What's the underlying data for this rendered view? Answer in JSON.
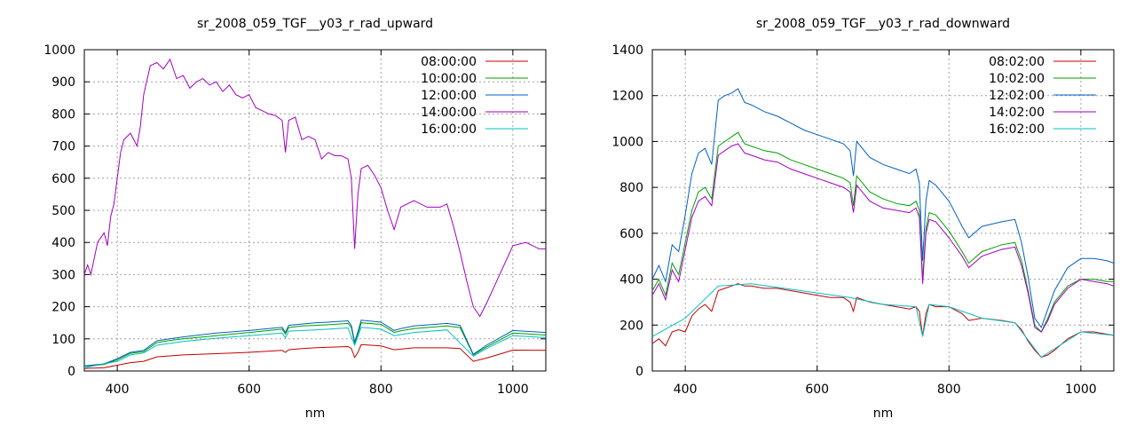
{
  "chart_data": [
    {
      "type": "line",
      "title": "sr_2008_059_TGF__y03_r_rad_upward",
      "xlabel": "nm",
      "ylabel": "",
      "xlim": [
        350,
        1050
      ],
      "ylim": [
        0,
        1000
      ],
      "xticks": [
        400,
        600,
        800,
        1000
      ],
      "yticks": [
        0,
        100,
        200,
        300,
        400,
        500,
        600,
        700,
        800,
        900,
        1000
      ],
      "grid": true,
      "legend_position": "top-right",
      "series": [
        {
          "name": "08:00:00",
          "color": "#c00000",
          "x": [
            350,
            380,
            400,
            420,
            440,
            460,
            480,
            500,
            550,
            600,
            650,
            655,
            660,
            680,
            700,
            720,
            750,
            755,
            760,
            765,
            770,
            800,
            820,
            830,
            850,
            900,
            920,
            940,
            960,
            1000,
            1050
          ],
          "y": [
            8,
            10,
            18,
            26,
            30,
            44,
            47,
            50,
            54,
            58,
            64,
            58,
            66,
            70,
            72,
            74,
            76,
            70,
            42,
            58,
            82,
            78,
            66,
            68,
            72,
            72,
            70,
            30,
            40,
            65,
            64
          ]
        },
        {
          "name": "10:00:00",
          "color": "#00a000",
          "x": [
            350,
            380,
            400,
            420,
            440,
            460,
            480,
            500,
            550,
            600,
            650,
            655,
            660,
            680,
            700,
            720,
            750,
            755,
            760,
            765,
            770,
            800,
            820,
            830,
            850,
            900,
            920,
            940,
            960,
            1000,
            1050
          ],
          "y": [
            15,
            20,
            35,
            55,
            60,
            88,
            95,
            100,
            110,
            120,
            130,
            115,
            135,
            140,
            142,
            144,
            148,
            135,
            85,
            115,
            150,
            145,
            120,
            125,
            132,
            140,
            135,
            50,
            75,
            118,
            112
          ]
        },
        {
          "name": "12:00:00",
          "color": "#0060c0",
          "x": [
            350,
            380,
            400,
            420,
            440,
            460,
            480,
            500,
            550,
            600,
            650,
            655,
            660,
            680,
            700,
            720,
            750,
            755,
            760,
            765,
            770,
            800,
            820,
            830,
            850,
            900,
            920,
            940,
            960,
            1000,
            1050
          ],
          "y": [
            16,
            22,
            38,
            58,
            64,
            94,
            100,
            106,
            118,
            126,
            136,
            120,
            142,
            146,
            150,
            152,
            156,
            142,
            90,
            122,
            158,
            152,
            126,
            132,
            140,
            148,
            142,
            52,
            80,
            126,
            120
          ]
        },
        {
          "name": "14:00:00",
          "color": "#a000c0",
          "x": [
            350,
            355,
            360,
            370,
            380,
            385,
            390,
            395,
            400,
            405,
            410,
            420,
            430,
            435,
            440,
            450,
            460,
            470,
            480,
            490,
            500,
            510,
            520,
            530,
            540,
            550,
            560,
            570,
            580,
            590,
            600,
            610,
            620,
            630,
            640,
            650,
            655,
            660,
            670,
            680,
            690,
            700,
            710,
            720,
            730,
            740,
            750,
            755,
            760,
            765,
            770,
            780,
            790,
            800,
            810,
            820,
            830,
            850,
            870,
            890,
            900,
            910,
            920,
            930,
            940,
            950,
            960,
            980,
            1000,
            1020,
            1030,
            1040,
            1050
          ],
          "y": [
            300,
            330,
            300,
            400,
            430,
            390,
            480,
            520,
            600,
            680,
            720,
            740,
            700,
            760,
            860,
            950,
            960,
            940,
            970,
            910,
            920,
            880,
            900,
            910,
            890,
            900,
            870,
            890,
            860,
            850,
            860,
            820,
            810,
            800,
            795,
            780,
            680,
            780,
            790,
            720,
            730,
            720,
            660,
            680,
            670,
            670,
            660,
            600,
            380,
            550,
            630,
            640,
            610,
            570,
            500,
            440,
            510,
            530,
            510,
            510,
            520,
            450,
            370,
            280,
            200,
            170,
            210,
            300,
            390,
            400,
            390,
            380,
            380
          ]
        },
        {
          "name": "16:00:00",
          "color": "#00c0c0",
          "x": [
            350,
            400,
            420,
            440,
            460,
            500,
            550,
            600,
            650,
            655,
            660,
            700,
            750,
            760,
            770,
            800,
            820,
            850,
            900,
            940,
            960,
            1000,
            1050
          ],
          "y": [
            10,
            30,
            50,
            56,
            80,
            92,
            102,
            110,
            118,
            104,
            124,
            128,
            134,
            80,
            136,
            130,
            110,
            120,
            128,
            46,
            70,
            110,
            104
          ]
        }
      ]
    },
    {
      "type": "line",
      "title": "sr_2008_059_TGF__y03_r_rad_downward",
      "xlabel": "nm",
      "ylabel": "",
      "xlim": [
        350,
        1050
      ],
      "ylim": [
        0,
        1400
      ],
      "xticks": [
        400,
        600,
        800,
        1000
      ],
      "yticks": [
        0,
        200,
        400,
        600,
        800,
        1000,
        1200,
        1400
      ],
      "grid": true,
      "legend_position": "top-right",
      "series": [
        {
          "name": "08:02:00",
          "color": "#c00000",
          "x": [
            350,
            360,
            370,
            380,
            390,
            400,
            410,
            420,
            430,
            440,
            450,
            460,
            470,
            480,
            490,
            500,
            520,
            540,
            560,
            580,
            600,
            620,
            640,
            650,
            655,
            660,
            680,
            700,
            720,
            740,
            750,
            755,
            760,
            765,
            770,
            780,
            800,
            820,
            830,
            850,
            880,
            900,
            910,
            920,
            930,
            940,
            950,
            960,
            980,
            1000,
            1020,
            1040,
            1050
          ],
          "y": [
            120,
            140,
            110,
            170,
            180,
            170,
            240,
            270,
            290,
            260,
            350,
            360,
            370,
            380,
            370,
            370,
            360,
            360,
            350,
            340,
            330,
            320,
            320,
            300,
            260,
            320,
            300,
            290,
            280,
            270,
            280,
            260,
            150,
            250,
            290,
            280,
            280,
            250,
            220,
            230,
            220,
            210,
            180,
            130,
            90,
            60,
            70,
            90,
            140,
            170,
            170,
            160,
            155
          ]
        },
        {
          "name": "10:02:00",
          "color": "#00a000",
          "x": [
            350,
            360,
            370,
            380,
            390,
            400,
            410,
            420,
            430,
            440,
            450,
            460,
            470,
            480,
            490,
            500,
            520,
            540,
            560,
            580,
            600,
            620,
            640,
            650,
            655,
            660,
            680,
            700,
            720,
            740,
            750,
            755,
            760,
            765,
            770,
            780,
            800,
            820,
            830,
            850,
            880,
            900,
            910,
            920,
            930,
            940,
            950,
            960,
            980,
            1000,
            1020,
            1040,
            1050
          ],
          "y": [
            350,
            400,
            330,
            470,
            420,
            560,
            700,
            780,
            800,
            750,
            980,
            1000,
            1020,
            1040,
            990,
            980,
            960,
            950,
            920,
            900,
            880,
            860,
            840,
            820,
            720,
            850,
            780,
            750,
            730,
            720,
            740,
            700,
            400,
            620,
            690,
            680,
            610,
            520,
            470,
            520,
            550,
            560,
            480,
            350,
            200,
            170,
            230,
            300,
            370,
            400,
            400,
            390,
            390
          ]
        },
        {
          "name": "12:02:00",
          "color": "#0060c0",
          "x": [
            350,
            360,
            370,
            380,
            390,
            400,
            410,
            420,
            430,
            440,
            450,
            460,
            470,
            480,
            490,
            500,
            520,
            540,
            560,
            580,
            600,
            620,
            640,
            650,
            655,
            660,
            680,
            700,
            720,
            740,
            750,
            755,
            760,
            765,
            770,
            780,
            800,
            820,
            830,
            850,
            880,
            900,
            910,
            920,
            930,
            940,
            950,
            960,
            980,
            1000,
            1020,
            1040,
            1050
          ],
          "y": [
            400,
            460,
            390,
            550,
            520,
            680,
            860,
            950,
            970,
            900,
            1180,
            1200,
            1210,
            1230,
            1170,
            1160,
            1130,
            1110,
            1080,
            1050,
            1030,
            1010,
            990,
            960,
            850,
            1000,
            930,
            900,
            880,
            860,
            880,
            820,
            480,
            740,
            830,
            810,
            740,
            630,
            580,
            630,
            650,
            660,
            560,
            410,
            230,
            190,
            270,
            350,
            450,
            490,
            490,
            480,
            470
          ]
        },
        {
          "name": "14:02:00",
          "color": "#a000c0",
          "x": [
            350,
            360,
            370,
            380,
            390,
            400,
            410,
            420,
            430,
            440,
            450,
            460,
            470,
            480,
            490,
            500,
            520,
            540,
            560,
            580,
            600,
            620,
            640,
            650,
            655,
            660,
            680,
            700,
            720,
            740,
            750,
            755,
            760,
            765,
            770,
            780,
            800,
            820,
            830,
            850,
            880,
            900,
            910,
            920,
            930,
            940,
            950,
            960,
            980,
            1000,
            1020,
            1040,
            1050
          ],
          "y": [
            330,
            380,
            310,
            440,
            390,
            530,
            670,
            740,
            760,
            720,
            940,
            960,
            980,
            990,
            950,
            940,
            920,
            910,
            880,
            860,
            840,
            820,
            800,
            780,
            690,
            810,
            740,
            710,
            700,
            690,
            710,
            670,
            380,
            600,
            660,
            650,
            580,
            500,
            450,
            500,
            530,
            540,
            460,
            340,
            190,
            170,
            220,
            290,
            360,
            400,
            390,
            380,
            370
          ]
        },
        {
          "name": "16:02:00",
          "color": "#00c0c0",
          "x": [
            350,
            400,
            450,
            500,
            550,
            600,
            650,
            700,
            750,
            760,
            770,
            800,
            850,
            900,
            940,
            1000,
            1050
          ],
          "y": [
            150,
            230,
            370,
            380,
            360,
            340,
            320,
            290,
            280,
            150,
            290,
            280,
            230,
            210,
            60,
            170,
            155
          ]
        }
      ]
    }
  ]
}
